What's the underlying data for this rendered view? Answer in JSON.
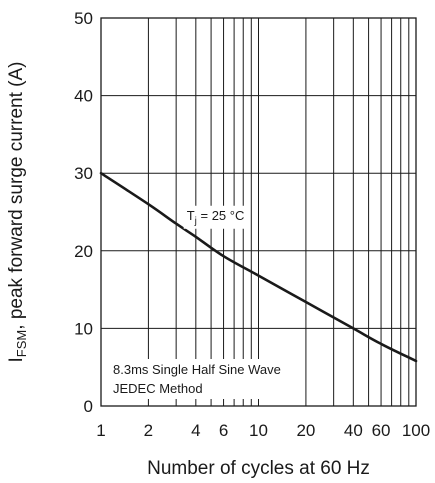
{
  "chart_data": {
    "type": "line",
    "xscale": "log",
    "xlim": [
      1,
      100
    ],
    "ylim": [
      0,
      50
    ],
    "xlabel": "Number of cycles at 60 Hz",
    "ylabel": {
      "symbol": "I",
      "subscript": "FSM",
      "rest": ", peak forward surge current (A)"
    },
    "x_tick_labels": [
      "1",
      "2",
      "4",
      "6",
      "10",
      "20",
      "40",
      "60",
      "100"
    ],
    "x_tick_values": [
      1,
      2,
      4,
      6,
      10,
      20,
      40,
      60,
      100
    ],
    "y_tick_labels": [
      "0",
      "10",
      "20",
      "30",
      "40",
      "50"
    ],
    "y_tick_values": [
      0,
      10,
      20,
      30,
      40,
      50
    ],
    "grid": true,
    "series": [
      {
        "x": [
          1,
          2,
          3,
          4,
          6,
          10,
          20,
          40,
          60,
          100
        ],
        "y": [
          30,
          26,
          23.5,
          21.8,
          19.3,
          16.8,
          13.4,
          10,
          8,
          5.8
        ]
      }
    ],
    "annotations": {
      "tj": {
        "symbol": "T",
        "subscript": "j",
        "rest": " = 25 °C",
        "x": 3.5,
        "y": 24
      },
      "note": [
        "8.3ms Single Half Sine Wave",
        "JEDEC Method"
      ]
    },
    "colors": {
      "line": "#1a1a1a",
      "grid": "#1a1a1a",
      "background": "#ffffff"
    }
  }
}
